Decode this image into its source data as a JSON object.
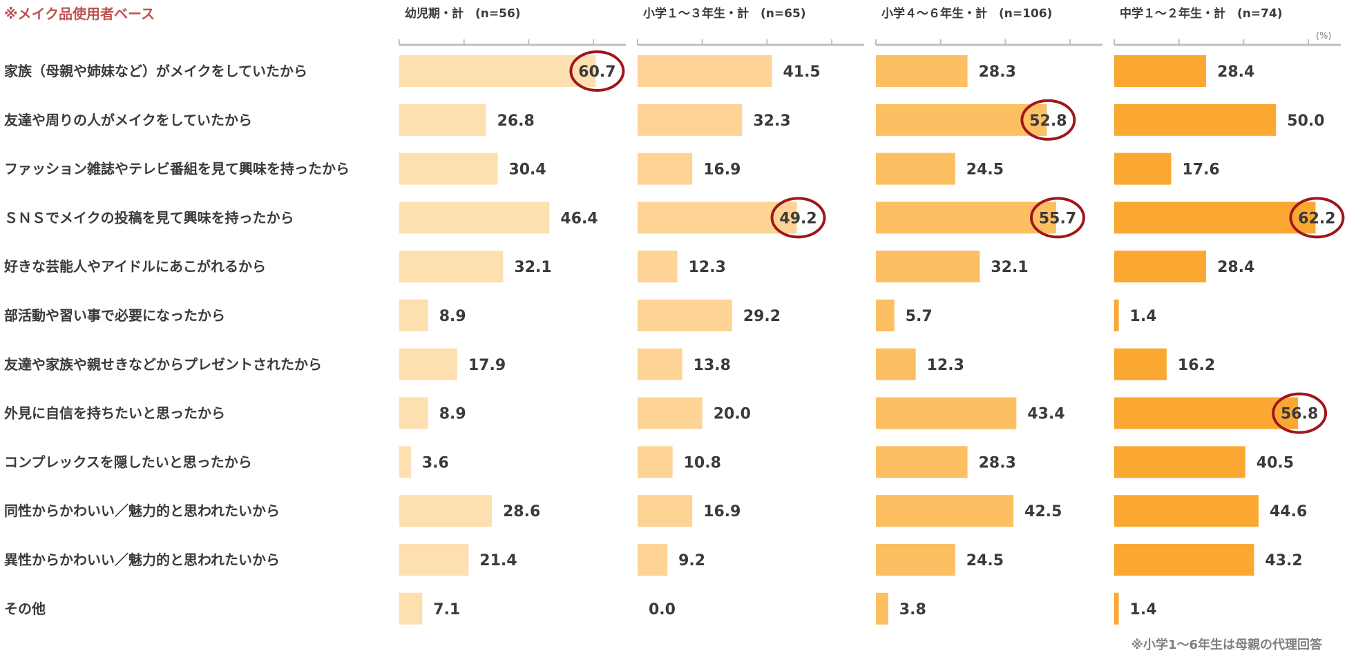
{
  "note": "※メイク品使用者ベース",
  "footnote": "※小学1～6年生は母親の代理回答",
  "unit": "(%)",
  "chart_data": {
    "type": "bar",
    "orientation": "horizontal",
    "xlim": [
      0,
      70
    ],
    "categories": [
      "家族（母親や姉妹など）がメイクをしていたから",
      "友達や周りの人がメイクをしていたから",
      "ファッション雑誌やテレビ番組を見て興味を持ったから",
      "ＳＮＳでメイクの投稿を見て興味を持ったから",
      "好きな芸能人やアイドルにあこがれるから",
      "部活動や習い事で必要になったから",
      "友達や家族や親せきなどからプレゼントされたから",
      "外見に自信を持ちたいと思ったから",
      "コンプレックスを隠したいと思ったから",
      "同性からかわいい／魅力的と思われたいから",
      "異性からかわいい／魅力的と思われたいから",
      "その他"
    ],
    "series": [
      {
        "name": "幼児期・計　(n=56)",
        "color": "#fddfb0",
        "values": [
          60.7,
          26.8,
          30.4,
          46.4,
          32.1,
          8.9,
          17.9,
          8.9,
          3.6,
          28.6,
          21.4,
          7.1
        ],
        "labels": [
          "60.7",
          "26.8",
          "30.4",
          "46.4",
          "32.1",
          "8.9",
          "17.9",
          "8.9",
          "3.6",
          "28.6",
          "21.4",
          "7.1"
        ],
        "highlighted": [
          0
        ]
      },
      {
        "name": "小学１～３年生・計　(n=65)",
        "color": "#fdd495",
        "values": [
          41.5,
          32.3,
          16.9,
          49.2,
          12.3,
          29.2,
          13.8,
          20.0,
          10.8,
          16.9,
          9.2,
          0.0
        ],
        "labels": [
          "41.5",
          "32.3",
          "16.9",
          "49.2",
          "12.3",
          "29.2",
          "13.8",
          "20.0",
          "10.8",
          "16.9",
          "9.2",
          "0.0"
        ],
        "highlighted": [
          3
        ]
      },
      {
        "name": "小学４～６年生・計　(n=106)",
        "color": "#fcbf62",
        "values": [
          28.3,
          52.8,
          24.5,
          55.7,
          32.1,
          5.7,
          12.3,
          43.4,
          28.3,
          42.5,
          24.5,
          3.8
        ],
        "labels": [
          "28.3",
          "52.8",
          "24.5",
          "55.7",
          "32.1",
          "5.7",
          "12.3",
          "43.4",
          "28.3",
          "42.5",
          "24.5",
          "3.8"
        ],
        "highlighted": [
          1,
          3
        ]
      },
      {
        "name": "中学１～２年生・計　(n=74)",
        "color": "#fba833",
        "values": [
          28.4,
          50.0,
          17.6,
          62.2,
          28.4,
          1.4,
          16.2,
          56.8,
          40.5,
          44.6,
          43.2,
          1.4
        ],
        "labels": [
          "28.4",
          "50.0",
          "17.6",
          "62.2",
          "28.4",
          "1.4",
          "16.2",
          "56.8",
          "40.5",
          "44.6",
          "43.2",
          "1.4"
        ],
        "highlighted": [
          3,
          7
        ]
      }
    ],
    "highlight_color": "#a0161b"
  }
}
